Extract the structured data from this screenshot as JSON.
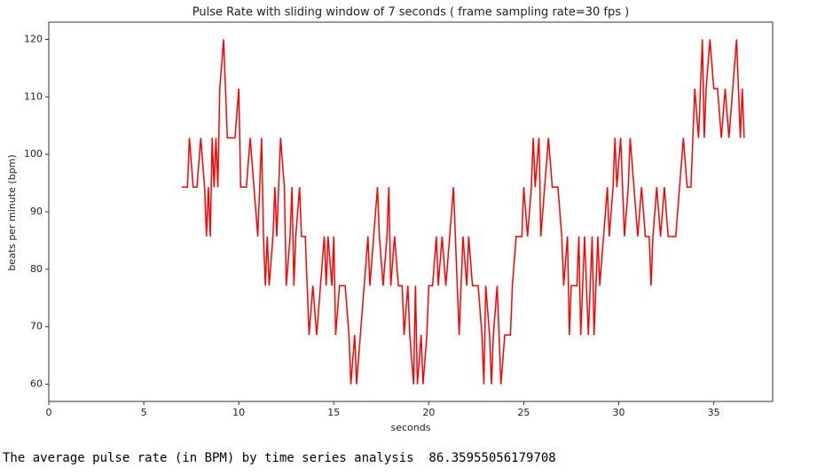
{
  "chart_data": {
    "type": "line",
    "title": "Pulse Rate with sliding window of 7 seconds  ( frame sampling rate=30 fps )",
    "x_label": "seconds",
    "y_label": "beats per minute (bpm)",
    "color": "#ff0000",
    "xlim": [
      0,
      38.1
    ],
    "ylim": [
      57,
      123
    ],
    "xticks": [
      0,
      5,
      10,
      15,
      20,
      25,
      30,
      35
    ],
    "yticks": [
      60,
      70,
      80,
      90,
      100,
      110,
      120
    ],
    "grid": false,
    "x": [
      7.0,
      7.3,
      7.4,
      7.6,
      7.8,
      8.0,
      8.2,
      8.3,
      8.4,
      8.5,
      8.6,
      8.7,
      8.8,
      8.9,
      9.0,
      9.2,
      9.3,
      9.4,
      9.8,
      10.0,
      10.1,
      10.4,
      10.6,
      10.8,
      11.0,
      11.1,
      11.2,
      11.3,
      11.4,
      11.5,
      11.6,
      11.8,
      11.9,
      12.0,
      12.2,
      12.4,
      12.5,
      12.7,
      12.8,
      12.9,
      13.0,
      13.2,
      13.3,
      13.5,
      13.6,
      13.7,
      13.9,
      14.1,
      14.3,
      14.5,
      14.6,
      14.7,
      14.9,
      15.0,
      15.1,
      15.3,
      15.6,
      15.8,
      15.9,
      16.1,
      16.2,
      16.4,
      16.6,
      16.8,
      16.9,
      17.1,
      17.3,
      17.4,
      17.6,
      17.8,
      17.9,
      18.0,
      18.2,
      18.4,
      18.6,
      18.7,
      18.9,
      19.0,
      19.2,
      19.3,
      19.4,
      19.6,
      19.7,
      19.9,
      20.0,
      20.2,
      20.4,
      20.5,
      20.7,
      20.9,
      21.1,
      21.3,
      21.4,
      21.6,
      21.8,
      22.0,
      22.1,
      22.3,
      22.6,
      22.8,
      22.9,
      23.0,
      23.2,
      23.3,
      23.4,
      23.6,
      23.8,
      24.0,
      24.3,
      24.4,
      24.6,
      24.9,
      25.0,
      25.2,
      25.4,
      25.5,
      25.6,
      25.8,
      25.9,
      26.1,
      26.3,
      26.5,
      26.8,
      27.0,
      27.1,
      27.3,
      27.4,
      27.5,
      27.8,
      27.9,
      28.0,
      28.2,
      28.4,
      28.6,
      28.7,
      28.9,
      29.0,
      29.2,
      29.4,
      29.5,
      29.7,
      29.8,
      29.9,
      30.1,
      30.3,
      30.5,
      30.6,
      30.8,
      31.0,
      31.2,
      31.4,
      31.6,
      31.7,
      31.8,
      32.0,
      32.2,
      32.4,
      32.6,
      33.0,
      33.2,
      33.4,
      33.6,
      33.8,
      33.9,
      34.0,
      34.2,
      34.4,
      34.5,
      34.6,
      34.8,
      35.0,
      35.2,
      35.4,
      35.6,
      35.8,
      36.0,
      36.2,
      36.4,
      36.5,
      36.6
    ],
    "values": [
      94.29,
      94.29,
      102.86,
      94.29,
      94.29,
      102.86,
      94.29,
      85.71,
      94.29,
      85.71,
      102.86,
      94.29,
      102.86,
      94.29,
      111.43,
      120,
      111.43,
      102.86,
      102.86,
      111.43,
      94.29,
      94.29,
      102.86,
      94.29,
      85.71,
      94.29,
      102.86,
      85.71,
      77.14,
      85.71,
      77.14,
      85.71,
      94.29,
      85.71,
      102.86,
      94.29,
      77.14,
      85.71,
      94.29,
      77.14,
      85.71,
      94.29,
      85.71,
      85.71,
      77.14,
      68.57,
      77.14,
      68.57,
      77.14,
      85.71,
      77.14,
      85.71,
      77.14,
      85.71,
      68.57,
      77.14,
      77.14,
      68.57,
      60,
      68.57,
      60,
      68.57,
      77.14,
      85.71,
      77.14,
      85.71,
      94.29,
      85.71,
      77.14,
      85.71,
      94.29,
      77.14,
      85.71,
      77.14,
      77.14,
      68.57,
      77.14,
      68.57,
      60,
      77.14,
      60,
      68.57,
      60,
      68.57,
      77.14,
      77.14,
      85.71,
      77.14,
      85.71,
      77.14,
      85.71,
      94.29,
      85.71,
      68.57,
      85.71,
      77.14,
      85.71,
      77.14,
      77.14,
      68.57,
      60,
      77.14,
      68.57,
      60,
      68.57,
      77.14,
      60,
      68.57,
      68.57,
      77.14,
      85.71,
      85.71,
      94.29,
      85.71,
      94.29,
      102.86,
      94.29,
      102.86,
      85.71,
      94.29,
      102.86,
      94.29,
      94.29,
      85.71,
      77.14,
      85.71,
      68.57,
      77.14,
      77.14,
      85.71,
      68.57,
      85.71,
      68.57,
      85.71,
      68.57,
      85.71,
      77.14,
      85.71,
      94.29,
      85.71,
      94.29,
      102.86,
      94.29,
      102.86,
      85.71,
      94.29,
      102.86,
      94.29,
      85.71,
      94.29,
      85.71,
      85.71,
      77.14,
      85.71,
      94.29,
      85.71,
      94.29,
      85.71,
      85.71,
      94.29,
      102.86,
      94.29,
      94.29,
      102.86,
      111.43,
      102.86,
      120,
      102.86,
      111.43,
      120,
      111.43,
      111.43,
      102.86,
      111.43,
      102.86,
      111.43,
      120,
      102.86,
      111.43,
      102.86
    ]
  },
  "output_text": "The average pulse rate (in BPM) by time series analysis  86.35955056179708"
}
